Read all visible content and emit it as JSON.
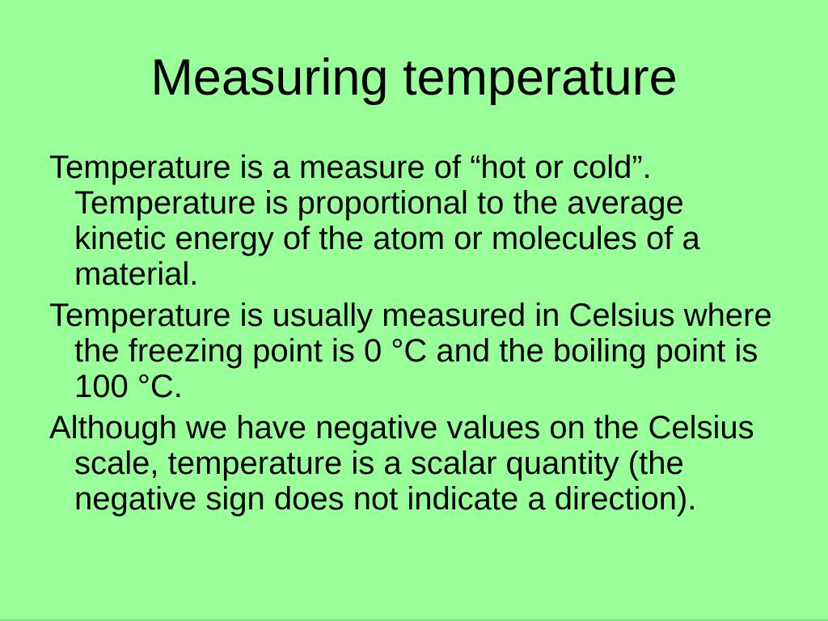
{
  "slide": {
    "title": "Measuring temperature",
    "body": {
      "paragraphs": [
        {
          "lines": [
            "Temperature is a measure of “hot or cold”.",
            "Temperature is proportional to the average",
            "kinetic energy of the atom or molecules of a",
            "material."
          ]
        },
        {
          "lines": [
            "Temperature is usually measured in Celsius where",
            "the freezing point is 0 °C and the boiling point is",
            "100 °C."
          ]
        },
        {
          "lines": [
            "Although we have negative values on the Celsius",
            "scale, temperature is a scalar quantity (the",
            "negative sign does not indicate a direction)."
          ]
        }
      ]
    },
    "colors": {
      "background": "#99ff99",
      "text": "#000000",
      "bottom_edge": "#7fe08a"
    }
  }
}
